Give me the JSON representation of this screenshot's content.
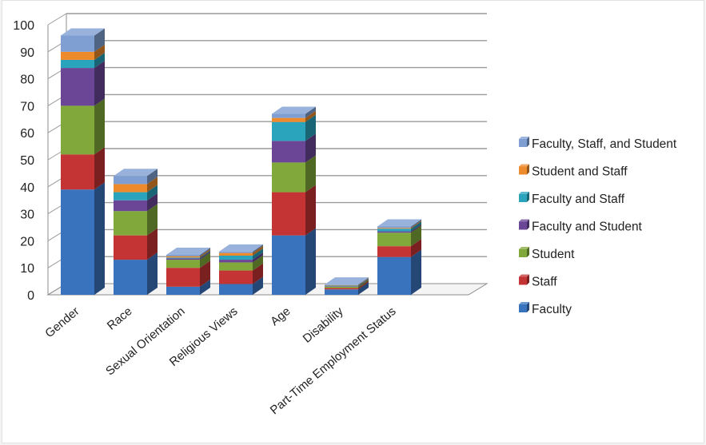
{
  "chart_data": {
    "type": "bar",
    "stacked": true,
    "three_d": true,
    "categories": [
      "Gender",
      "Race",
      "Sexual Orientation",
      "Religious Views",
      "Age",
      "Disability",
      "Part-Time Employment Status"
    ],
    "series": [
      {
        "name": "Faculty",
        "color": "#3a73bd",
        "values": [
          39,
          13,
          3,
          4,
          22,
          2,
          14
        ]
      },
      {
        "name": "Staff",
        "color": "#c43434",
        "values": [
          13,
          9,
          7,
          5,
          16,
          0.5,
          4
        ]
      },
      {
        "name": "Student",
        "color": "#80a83a",
        "values": [
          18,
          9,
          3,
          3,
          11,
          0.5,
          5
        ]
      },
      {
        "name": "Faculty and Student",
        "color": "#6b4596",
        "values": [
          14,
          4,
          0.5,
          1,
          8,
          0.2,
          0.5
        ]
      },
      {
        "name": "Faculty and Staff",
        "color": "#2aa3bd",
        "values": [
          3,
          3,
          0.3,
          1.5,
          7,
          0.2,
          1
        ]
      },
      {
        "name": "Student and Staff",
        "color": "#ec8a2c",
        "values": [
          3,
          3,
          0.5,
          1,
          1.5,
          0.2,
          0.3
        ]
      },
      {
        "name": "Faculty, Staff, and Student",
        "color": "#7f9fd3",
        "values": [
          6,
          3,
          0.5,
          0.5,
          1.5,
          0.2,
          0.5
        ]
      }
    ],
    "yticks": [
      0,
      10,
      20,
      30,
      40,
      50,
      60,
      70,
      80,
      90,
      100
    ],
    "ylim": [
      0,
      100
    ],
    "grid": true,
    "legend_position": "right"
  }
}
